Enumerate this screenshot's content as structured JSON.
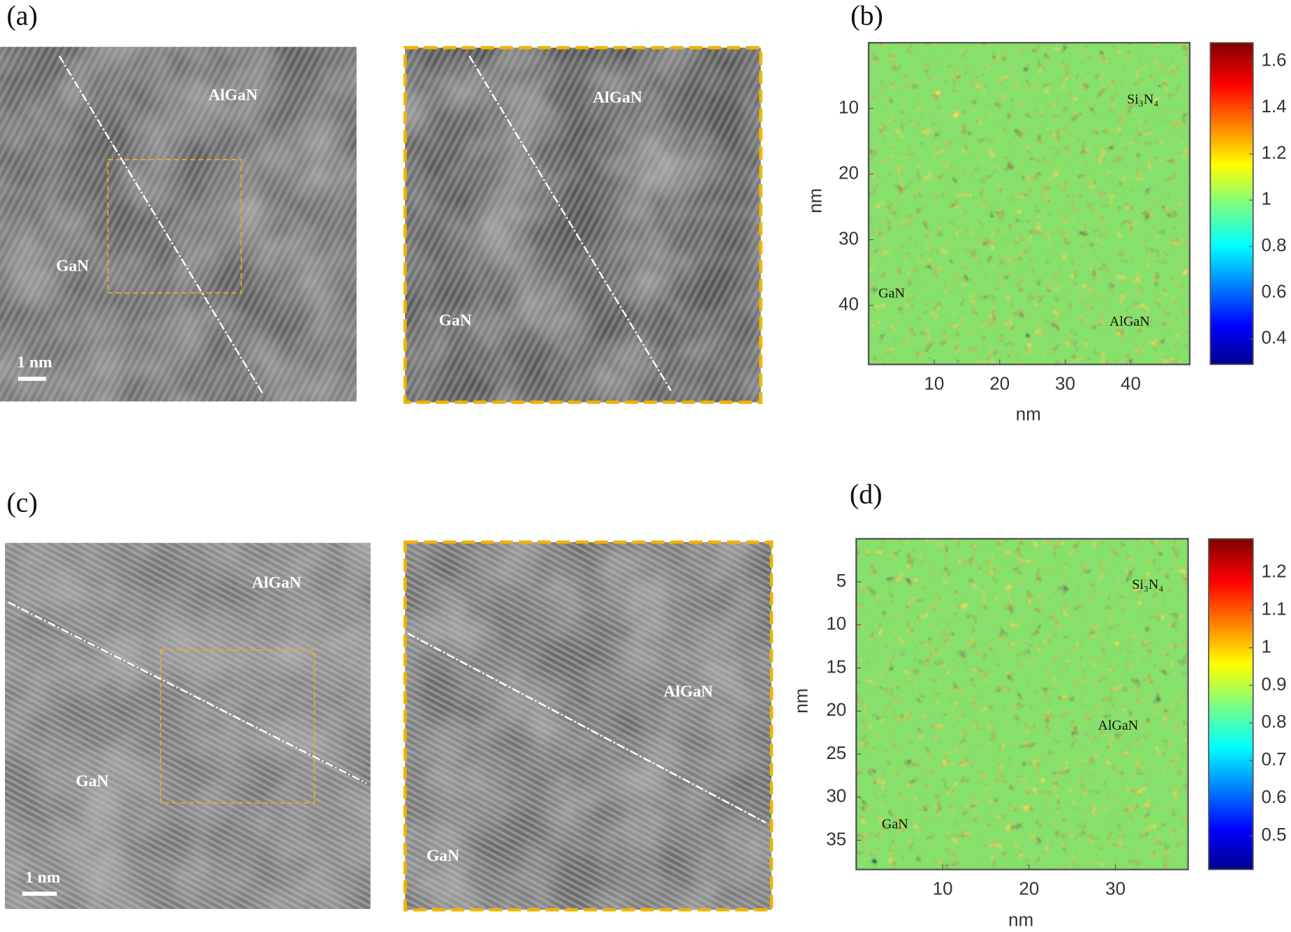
{
  "panels": [
    {
      "label": "(a)",
      "images": [
        {
          "labels": [
            "AlGaN",
            "GaN"
          ],
          "scale_bar": "1 nm"
        },
        {
          "labels": [
            "AlGaN",
            "GaN"
          ]
        }
      ]
    },
    {
      "label": "(b)",
      "map": {
        "xlabel": "nm",
        "ylabel": "nm",
        "xlim": [
          0,
          49
        ],
        "ylim": [
          0,
          49
        ],
        "xticks": [
          10,
          20,
          30,
          40
        ],
        "yticks": [
          10,
          20,
          30,
          40
        ],
        "clim": [
          0.29,
          1.68
        ],
        "cticks": [
          0.4,
          0.6,
          0.8,
          1,
          1.2,
          1.4,
          1.6
        ],
        "labels": [
          "Si₃N₄",
          "GaN",
          "AlGaN"
        ]
      }
    },
    {
      "label": "(c)",
      "images": [
        {
          "labels": [
            "AlGaN",
            "GaN"
          ],
          "scale_bar": "1 nm"
        },
        {
          "labels": [
            "AlGaN",
            "GaN"
          ]
        }
      ]
    },
    {
      "label": "(d)",
      "map": {
        "xlabel": "nm",
        "ylabel": "nm",
        "xlim": [
          0,
          38.4
        ],
        "ylim": [
          0,
          38.4
        ],
        "xticks": [
          10,
          20,
          30
        ],
        "yticks": [
          5,
          10,
          15,
          20,
          25,
          30,
          35
        ],
        "clim": [
          0.41,
          1.29
        ],
        "cticks": [
          0.5,
          0.6,
          0.7,
          0.8,
          0.9,
          1,
          1.1,
          1.2
        ],
        "labels": [
          "Si₃N₄",
          "GaN",
          "AlGaN"
        ]
      }
    }
  ]
}
